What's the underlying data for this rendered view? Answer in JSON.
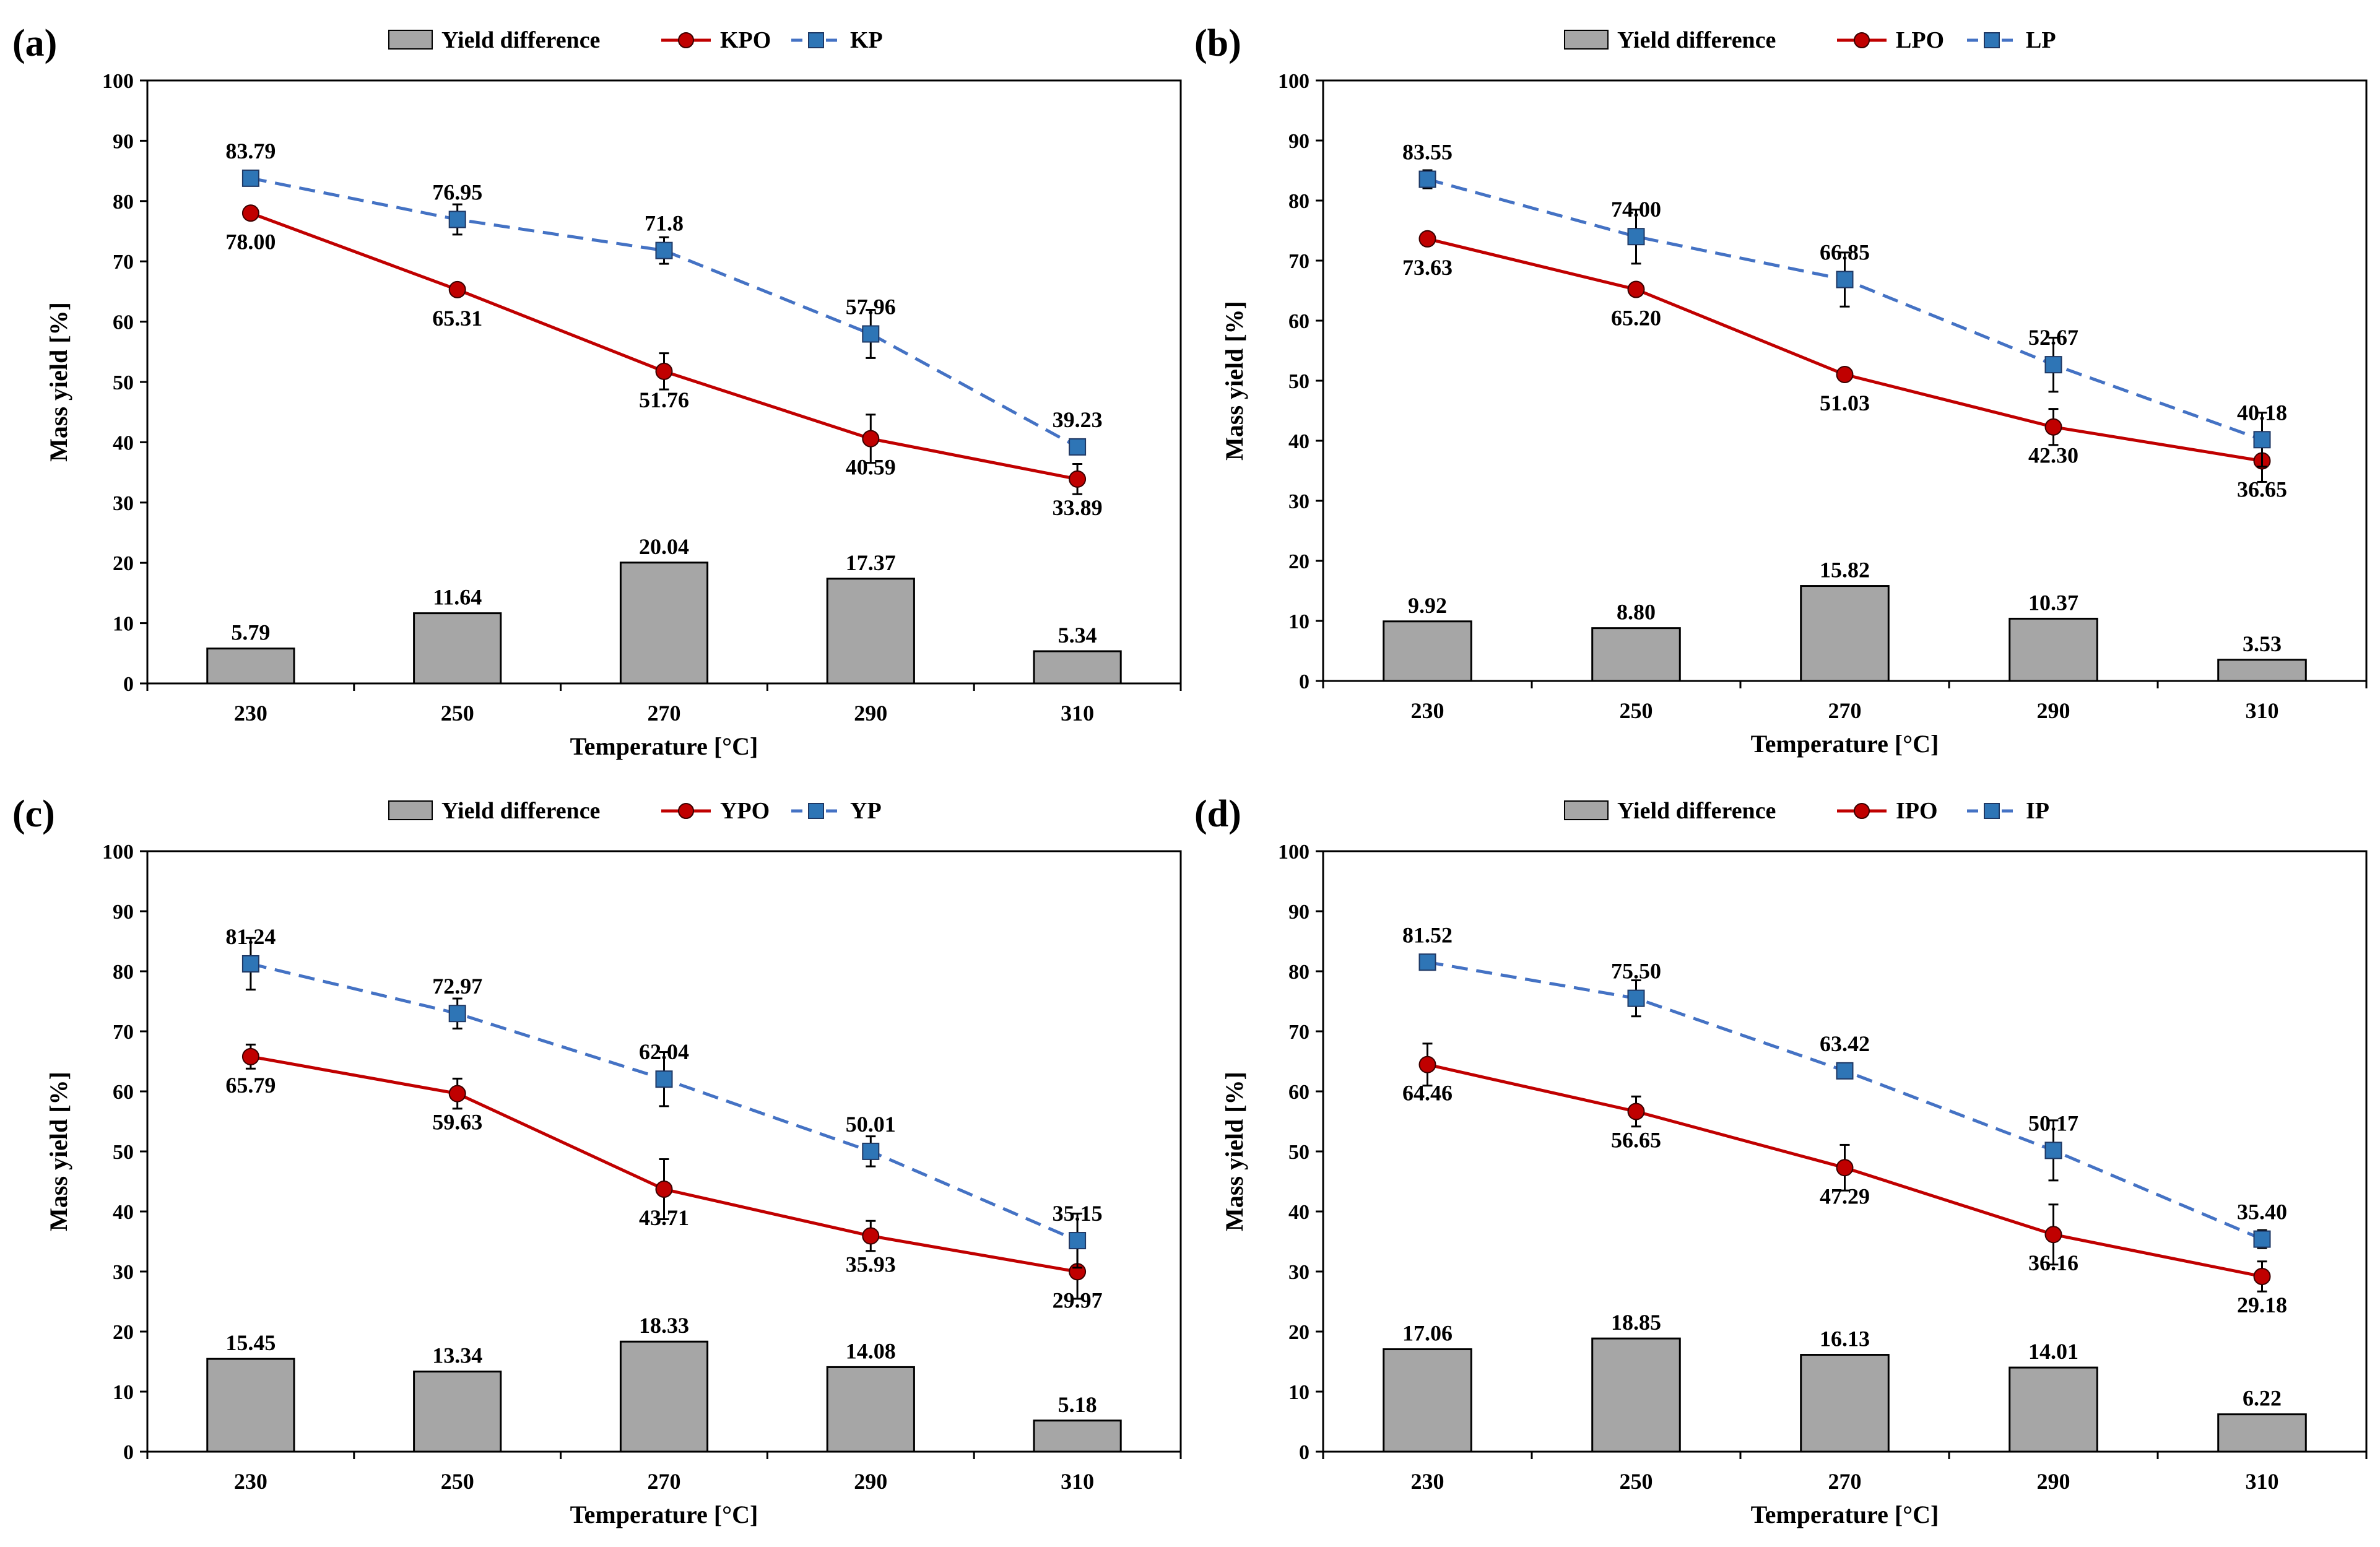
{
  "colors": {
    "bar_fill": "#a6a6a6",
    "bar_stroke": "#000000",
    "line_o": "#c00000",
    "marker_o": "#c00000",
    "line_p": "#4472c4",
    "marker_p": "#2e75b6",
    "axis": "#000000"
  },
  "chart_data": [
    {
      "panel_label": "(a)",
      "type": "bar+line",
      "xlabel": "Temperature [°C]",
      "ylabel": "Mass yield [%]",
      "ylim": [
        0,
        100
      ],
      "yticks": [
        "0",
        "10",
        "20",
        "30",
        "40",
        "50",
        "60",
        "70",
        "80",
        "90",
        "100"
      ],
      "categories": [
        "230",
        "250",
        "270",
        "290",
        "310"
      ],
      "legend": {
        "bar": "Yield difference",
        "line_o": "KPO",
        "line_p": "KP"
      },
      "bar_values": [
        5.79,
        11.64,
        20.04,
        17.37,
        5.34
      ],
      "bar_labels": [
        "5.79",
        "11.64",
        "20.04",
        "17.37",
        "5.34"
      ],
      "series_o": {
        "name": "KPO",
        "values": [
          78.0,
          65.31,
          51.76,
          40.59,
          33.89
        ],
        "labels": [
          "78.00",
          "65.31",
          "51.76",
          "40.59",
          "33.89"
        ],
        "errors": [
          0.6,
          0.8,
          3.0,
          4.0,
          2.5
        ]
      },
      "series_p": {
        "name": "KP",
        "values": [
          83.79,
          76.95,
          71.8,
          57.96,
          39.23
        ],
        "labels": [
          "83.79",
          "76.95",
          "71.8",
          "57.96",
          "39.23"
        ],
        "errors": [
          0.6,
          2.5,
          2.2,
          4.0,
          1.2
        ]
      }
    },
    {
      "panel_label": "(b)",
      "type": "bar+line",
      "xlabel": "Temperature [°C]",
      "ylabel": "Mass yield [%]",
      "ylim": [
        0,
        100
      ],
      "yticks": [
        "0",
        "10",
        "20",
        "30",
        "40",
        "50",
        "60",
        "70",
        "80",
        "90",
        "100"
      ],
      "categories": [
        "230",
        "250",
        "270",
        "290",
        "310"
      ],
      "legend": {
        "bar": "Yield difference",
        "line_o": "LPO",
        "line_p": "LP"
      },
      "bar_values": [
        9.92,
        8.8,
        15.82,
        10.37,
        3.53
      ],
      "bar_labels": [
        "9.92",
        "8.80",
        "15.82",
        "10.37",
        "3.53"
      ],
      "series_o": {
        "name": "LPO",
        "values": [
          73.63,
          65.2,
          51.03,
          42.3,
          36.65
        ],
        "labels": [
          "73.63",
          "65.20",
          "51.03",
          "42.30",
          "36.65"
        ],
        "errors": [
          0.6,
          0.8,
          0.8,
          3.0,
          3.5
        ]
      },
      "series_p": {
        "name": "LP",
        "values": [
          83.55,
          74.0,
          66.85,
          52.67,
          40.18
        ],
        "labels": [
          "83.55",
          "74.00",
          "66.85",
          "52.67",
          "40.18"
        ],
        "errors": [
          1.5,
          4.5,
          4.5,
          4.5,
          4.5
        ]
      }
    },
    {
      "panel_label": "(c)",
      "type": "bar+line",
      "xlabel": "Temperature [°C]",
      "ylabel": "Mass yield [%]",
      "ylim": [
        0,
        100
      ],
      "yticks": [
        "0",
        "10",
        "20",
        "30",
        "40",
        "50",
        "60",
        "70",
        "80",
        "90",
        "100"
      ],
      "categories": [
        "230",
        "250",
        "270",
        "290",
        "310"
      ],
      "legend": {
        "bar": "Yield difference",
        "line_o": "YPO",
        "line_p": "YP"
      },
      "bar_values": [
        15.45,
        13.34,
        18.33,
        14.08,
        5.18
      ],
      "bar_labels": [
        "15.45",
        "13.34",
        "18.33",
        "14.08",
        "5.18"
      ],
      "series_o": {
        "name": "YPO",
        "values": [
          65.79,
          59.63,
          43.71,
          35.93,
          29.97
        ],
        "labels": [
          "65.79",
          "59.63",
          "43.71",
          "35.93",
          "29.97"
        ],
        "errors": [
          2.0,
          2.5,
          5.0,
          2.5,
          4.5
        ]
      },
      "series_p": {
        "name": "YP",
        "values": [
          81.24,
          72.97,
          62.04,
          50.01,
          35.15
        ],
        "labels": [
          "81.24",
          "72.97",
          "62.04",
          "50.01",
          "35.15"
        ],
        "errors": [
          4.3,
          2.5,
          4.5,
          2.5,
          4.5
        ]
      }
    },
    {
      "panel_label": "(d)",
      "type": "bar+line",
      "xlabel": "Temperature [°C]",
      "ylabel": "Mass yield [%]",
      "ylim": [
        0,
        100
      ],
      "yticks": [
        "0",
        "10",
        "20",
        "30",
        "40",
        "50",
        "60",
        "70",
        "80",
        "90",
        "100"
      ],
      "categories": [
        "230",
        "250",
        "270",
        "290",
        "310"
      ],
      "legend": {
        "bar": "Yield difference",
        "line_o": "IPO",
        "line_p": "IP"
      },
      "bar_values": [
        17.06,
        18.85,
        16.13,
        14.01,
        6.22
      ],
      "bar_labels": [
        "17.06",
        "18.85",
        "16.13",
        "14.01",
        "6.22"
      ],
      "series_o": {
        "name": "IPO",
        "values": [
          64.46,
          56.65,
          47.29,
          36.16,
          29.18
        ],
        "labels": [
          "64.46",
          "56.65",
          "47.29",
          "36.16",
          "29.18"
        ],
        "errors": [
          3.5,
          2.5,
          3.8,
          5.0,
          2.5
        ]
      },
      "series_p": {
        "name": "IP",
        "values": [
          81.52,
          75.5,
          63.42,
          50.17,
          35.4
        ],
        "labels": [
          "81.52",
          "75.50",
          "63.42",
          "50.17",
          "35.40"
        ],
        "errors": [
          1.0,
          3.0,
          1.0,
          5.0,
          1.5
        ]
      }
    }
  ]
}
